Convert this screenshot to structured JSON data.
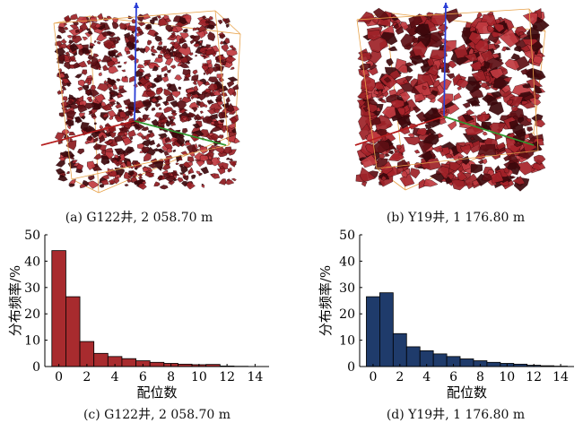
{
  "panels": {
    "a": {
      "caption": "(a) G122井, 2 058.70 m",
      "color": "#8b1a1e"
    },
    "b": {
      "caption": "(b) Y19井, 1 176.80 m",
      "color": "#a8232a"
    },
    "c": {
      "caption": "(c) G122井, 2 058.70 m"
    },
    "d": {
      "caption": "(d) Y19井, 1 176.80 m"
    }
  },
  "chart_data": [
    {
      "type": "bar",
      "panel": "c",
      "color": "#a82b2e",
      "xlabel": "配位数",
      "ylabel": "分布频率/%",
      "xlim": [
        -1,
        15
      ],
      "ylim": [
        0,
        50
      ],
      "xticks": [
        0,
        2,
        4,
        6,
        8,
        10,
        12,
        14
      ],
      "yticks": [
        0,
        10,
        20,
        30,
        40,
        50
      ],
      "x": [
        0,
        1,
        2,
        3,
        4,
        5,
        6,
        7,
        8,
        9,
        10,
        11,
        12,
        13,
        14
      ],
      "values": [
        44,
        26.5,
        9.5,
        5,
        3.8,
        3,
        2.2,
        1.6,
        1.2,
        0.9,
        0.7,
        0.8,
        0.2,
        0.1,
        0.05
      ]
    },
    {
      "type": "bar",
      "panel": "d",
      "color": "#1f3b6b",
      "xlabel": "配位数",
      "ylabel": "分布频率/%",
      "xlim": [
        -1,
        15
      ],
      "ylim": [
        0,
        50
      ],
      "xticks": [
        0,
        2,
        4,
        6,
        8,
        10,
        12,
        14
      ],
      "yticks": [
        0,
        10,
        20,
        30,
        40,
        50
      ],
      "x": [
        0,
        1,
        2,
        3,
        4,
        5,
        6,
        7,
        8,
        9,
        10,
        11,
        12,
        13,
        14
      ],
      "values": [
        26.5,
        28,
        12.5,
        7.5,
        6,
        4.8,
        3.8,
        2.9,
        2.2,
        1.6,
        1.2,
        0.9,
        0.5,
        0.3,
        0.15
      ]
    }
  ]
}
